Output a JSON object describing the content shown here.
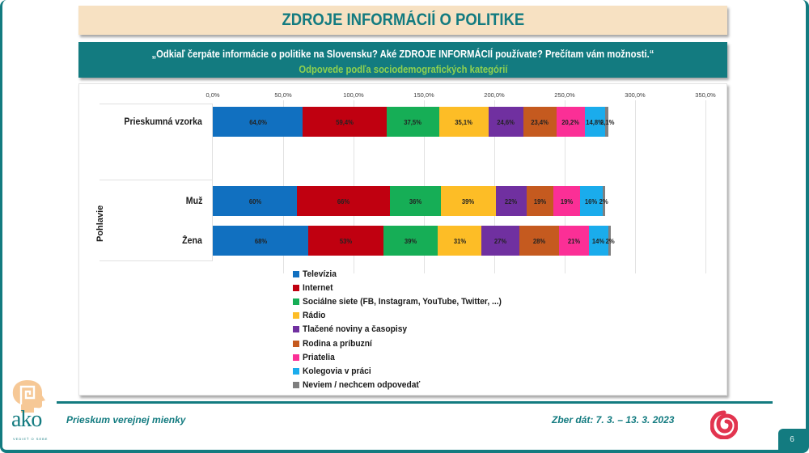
{
  "header": {
    "title": "ZDROJE INFORMÁCIÍ O POLITIKE",
    "question": "„Odkiaľ čerpáte informácie o politike na Slovensku? Aké ZDROJE INFORMÁCIÍ používate? Prečítam vám možnosti.“",
    "subtitle": "Odpovede podľa sociodemografických kategórií"
  },
  "chart": {
    "axis_ticks": [
      "0,0%",
      "50,0%",
      "100,0%",
      "150,0%",
      "200,0%",
      "250,0%",
      "300,0%",
      "350,0%"
    ],
    "group_label": "Pohlavie",
    "rows": [
      {
        "label": "Prieskumná vzorka",
        "labels": [
          "64,0%",
          "59,4%",
          "37,5%",
          "35,1%",
          "24,6%",
          "23,4%",
          "20,2%",
          "14,8%",
          "2,1%"
        ]
      },
      {
        "label": "Muž",
        "labels": [
          "60%",
          "66%",
          "36%",
          "39%",
          "22%",
          "19%",
          "19%",
          "16%",
          "2%"
        ]
      },
      {
        "label": "Žena",
        "labels": [
          "68%",
          "53%",
          "39%",
          "31%",
          "27%",
          "28%",
          "21%",
          "14%",
          "2%"
        ]
      }
    ],
    "legend": [
      {
        "label": "Televízia",
        "color": "#1170c0"
      },
      {
        "label": "Internet",
        "color": "#c00010"
      },
      {
        "label": "Sociálne siete (FB, Instagram, YouTube, Twitter, ...)",
        "color": "#16ae56"
      },
      {
        "label": "Rádio",
        "color": "#fdbd26"
      },
      {
        "label": "Tlačené noviny a časopisy",
        "color": "#7030a0"
      },
      {
        "label": "Rodina a príbuzní",
        "color": "#c55a1f"
      },
      {
        "label": "Priatelia",
        "color": "#fb2f96"
      },
      {
        "label": "Kolegovia v práci",
        "color": "#1aacec"
      },
      {
        "label": "Neviem / nechcem odpovedať",
        "color": "#7f7f7f"
      }
    ]
  },
  "chart_data": {
    "type": "bar",
    "orientation": "horizontal",
    "stacked": true,
    "title": "ZDROJE INFORMÁCIÍ O POLITIKE",
    "subtitle": "Odpovede podľa sociodemografických kategórií",
    "categories": [
      "Prieskumná vzorka",
      "Muž",
      "Žena"
    ],
    "category_groups": [
      {
        "name": "Pohlavie",
        "members": [
          "Muž",
          "Žena"
        ]
      }
    ],
    "series": [
      {
        "name": "Televízia",
        "values": [
          64.0,
          60,
          68
        ]
      },
      {
        "name": "Internet",
        "values": [
          59.4,
          66,
          53
        ]
      },
      {
        "name": "Sociálne siete (FB, Instagram, YouTube, Twitter, ...)",
        "values": [
          37.5,
          36,
          39
        ]
      },
      {
        "name": "Rádio",
        "values": [
          35.1,
          39,
          31
        ]
      },
      {
        "name": "Tlačené noviny a časopisy",
        "values": [
          24.6,
          22,
          27
        ]
      },
      {
        "name": "Rodina a príbuzní",
        "values": [
          23.4,
          19,
          28
        ]
      },
      {
        "name": "Priatelia",
        "values": [
          20.2,
          19,
          21
        ]
      },
      {
        "name": "Kolegovia v práci",
        "values": [
          14.8,
          16,
          14
        ]
      },
      {
        "name": "Neviem / nechcem odpovedať",
        "values": [
          2.1,
          2,
          2
        ]
      }
    ],
    "xlabel": "",
    "ylabel": "",
    "xlim": [
      0,
      350
    ],
    "xticks": [
      "0,0%",
      "50,0%",
      "100,0%",
      "150,0%",
      "200,0%",
      "250,0%",
      "300,0%",
      "350,0%"
    ],
    "grid": true,
    "legend_position": "bottom"
  },
  "footer": {
    "left": "Prieskum verejnej mienky",
    "right": "Zber dát: 7. 3. – 13. 3. 2023",
    "logo_text": "ako",
    "logo_tagline": "VEDIEŤ O SEBE",
    "page_number": "6"
  }
}
